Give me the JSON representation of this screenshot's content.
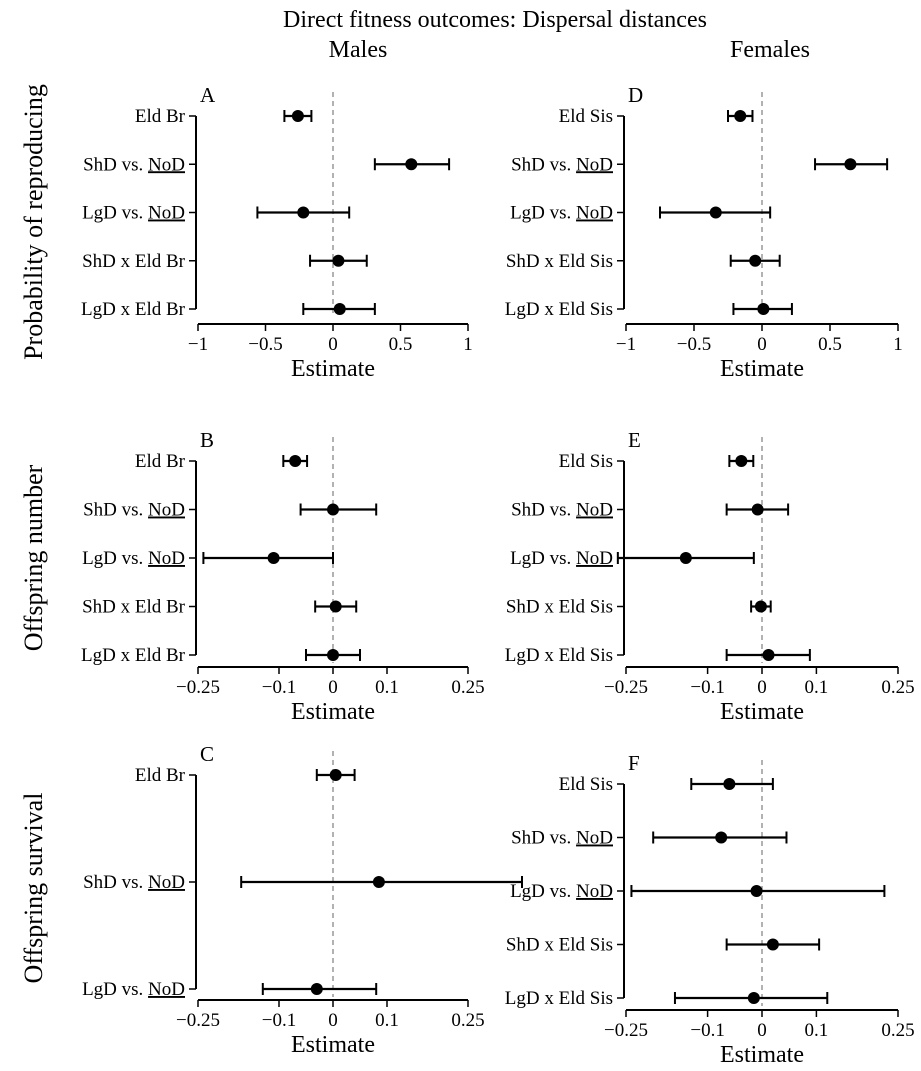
{
  "title": "Direct fitness outcomes: Dispersal distances",
  "columns": [
    "Males",
    "Females"
  ],
  "rows": [
    "Probability of reproducing",
    "Offspring number",
    "Offspring survival"
  ],
  "chart_data": [
    {
      "id": "A",
      "type": "forest",
      "panel": "A",
      "xlabel": "Estimate",
      "xlim": [
        -1,
        1
      ],
      "xticks": [
        -1,
        -0.5,
        0,
        0.5,
        1
      ],
      "xtick_labels": [
        "−1",
        "−0.5",
        "0",
        "0.5",
        "1"
      ],
      "reference_line": 0,
      "categories": [
        "Eld Br",
        "ShD vs. NoD",
        "LgD vs. NoD",
        "ShD x Eld Br",
        "LgD x Eld Br"
      ],
      "estimate": [
        -0.26,
        0.58,
        -0.22,
        0.04,
        0.05
      ],
      "lower": [
        -0.36,
        0.31,
        -0.56,
        -0.17,
        -0.22
      ],
      "upper": [
        -0.16,
        0.86,
        0.12,
        0.25,
        0.31
      ]
    },
    {
      "id": "B",
      "type": "forest",
      "panel": "B",
      "xlabel": "Estimate",
      "xlim": [
        -0.25,
        0.25
      ],
      "xticks": [
        -0.25,
        -0.1,
        0,
        0.1,
        0.25
      ],
      "xtick_labels": [
        "−0.25",
        "−0.1",
        "0",
        "0.1",
        "0.25"
      ],
      "reference_line": 0,
      "categories": [
        "Eld Br",
        "ShD vs. NoD",
        "LgD vs. NoD",
        "ShD x Eld Br",
        "LgD x Eld Br"
      ],
      "estimate": [
        -0.07,
        0.0,
        -0.11,
        0.005,
        0.0
      ],
      "lower": [
        -0.092,
        -0.06,
        -0.24,
        -0.033,
        -0.05
      ],
      "upper": [
        -0.048,
        0.08,
        0.0,
        0.043,
        0.05
      ]
    },
    {
      "id": "C",
      "type": "forest",
      "panel": "C",
      "xlabel": "Estimate",
      "xlim": [
        -0.25,
        0.25
      ],
      "xticks": [
        -0.25,
        -0.1,
        0,
        0.1,
        0.25
      ],
      "xtick_labels": [
        "−0.25",
        "−0.1",
        "0",
        "0.1",
        "0.25"
      ],
      "reference_line": 0,
      "categories": [
        "Eld Br",
        "ShD vs. NoD",
        "LgD vs. NoD"
      ],
      "estimate": [
        0.005,
        0.085,
        -0.03
      ],
      "lower": [
        -0.03,
        -0.17,
        -0.13
      ],
      "upper": [
        0.04,
        0.35,
        0.08
      ]
    },
    {
      "id": "D",
      "type": "forest",
      "panel": "D",
      "xlabel": "Estimate",
      "xlim": [
        -1,
        1
      ],
      "xticks": [
        -1,
        -0.5,
        0,
        0.5,
        1
      ],
      "xtick_labels": [
        "−1",
        "−0.5",
        "0",
        "0.5",
        "1"
      ],
      "reference_line": 0,
      "categories": [
        "Eld Sis",
        "ShD vs. NoD",
        "LgD vs. NoD",
        "ShD x Eld Sis",
        "LgD x Eld Sis"
      ],
      "estimate": [
        -0.16,
        0.65,
        -0.34,
        -0.05,
        0.01
      ],
      "lower": [
        -0.25,
        0.39,
        -0.75,
        -0.23,
        -0.21
      ],
      "upper": [
        -0.07,
        0.92,
        0.06,
        0.13,
        0.22
      ]
    },
    {
      "id": "E",
      "type": "forest",
      "panel": "E",
      "xlabel": "Estimate",
      "xlim": [
        -0.25,
        0.25
      ],
      "xticks": [
        -0.25,
        -0.1,
        0,
        0.1,
        0.25
      ],
      "xtick_labels": [
        "−0.25",
        "−0.1",
        "0",
        "0.1",
        "0.25"
      ],
      "reference_line": 0,
      "categories": [
        "Eld Sis",
        "ShD vs. NoD",
        "LgD vs. NoD",
        "ShD x Eld Sis",
        "LgD x Eld Sis"
      ],
      "estimate": [
        -0.038,
        -0.008,
        -0.14,
        -0.002,
        0.012
      ],
      "lower": [
        -0.06,
        -0.065,
        -0.265,
        -0.02,
        -0.065
      ],
      "upper": [
        -0.016,
        0.048,
        -0.015,
        0.016,
        0.088
      ]
    },
    {
      "id": "F",
      "type": "forest",
      "panel": "F",
      "xlabel": "Estimate",
      "xlim": [
        -0.25,
        0.25
      ],
      "xticks": [
        -0.25,
        -0.1,
        0,
        0.1,
        0.25
      ],
      "xtick_labels": [
        "−0.25",
        "−0.1",
        "0",
        "0.1",
        "0.25"
      ],
      "reference_line": 0,
      "categories": [
        "Eld Sis",
        "ShD vs. NoD",
        "LgD vs. NoD",
        "ShD x Eld Sis",
        "LgD x Eld Sis"
      ],
      "estimate": [
        -0.06,
        -0.075,
        -0.01,
        0.02,
        -0.015
      ],
      "lower": [
        -0.13,
        -0.2,
        -0.24,
        -0.065,
        -0.16
      ],
      "upper": [
        0.02,
        0.045,
        0.225,
        0.105,
        0.12
      ]
    }
  ]
}
